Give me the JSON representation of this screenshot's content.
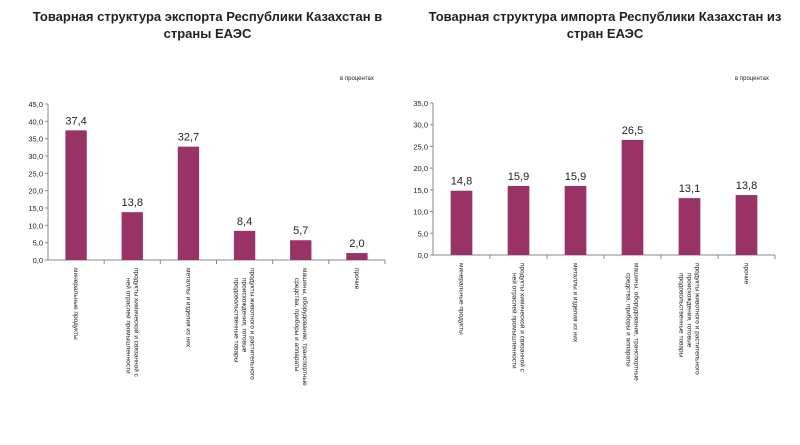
{
  "chart_data": [
    {
      "type": "bar",
      "title": "Товарная структура экспорта Республики Казахстан в страны ЕАЭС",
      "unit_note": "в процентах",
      "categories": [
        "минеральные продукты",
        "продукты химической и связанной с ней отраслей промышленности",
        "металлы и изделия из них",
        "продукты животного и растительного происхождения, готовые продовольственные товары",
        "машины, оборудование, транспортные средства, приборы и аппараты",
        "прочие"
      ],
      "values": [
        37.4,
        13.8,
        32.7,
        8.4,
        5.7,
        2.0
      ],
      "ylim": [
        0,
        45
      ],
      "ystep": 5,
      "grid": false,
      "color": "#993366"
    },
    {
      "type": "bar",
      "title": "Товарная структура импорта Республики Казахстан из стран ЕАЭС",
      "unit_note": "в процентах",
      "categories": [
        "минеральные продукты",
        "продукты химической и связанной с ней отраслей промышленности",
        "металлы и изделия из них",
        "машины, оборудование, транспортные средства, приборы и аппараты",
        "продукты животного и растительного происхождения, готовые продовольственные товары",
        "прочие"
      ],
      "values": [
        14.8,
        15.9,
        15.9,
        26.5,
        13.1,
        13.8
      ],
      "ylim": [
        0,
        35
      ],
      "ystep": 5,
      "grid": false,
      "color": "#993366"
    }
  ]
}
